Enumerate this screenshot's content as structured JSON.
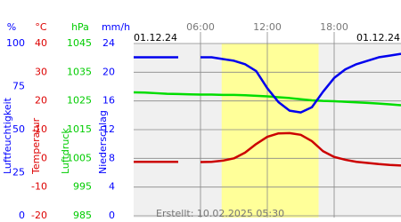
{
  "chart_data": {
    "type": "line",
    "left_date": "01.12.24",
    "right_date": "01.12.24",
    "footer": "Erstellt: 10.02.2025 05:30",
    "xlim": [
      0,
      24
    ],
    "xticks": [
      {
        "value": 6,
        "label": "06:00"
      },
      {
        "value": 12,
        "label": "12:00"
      },
      {
        "value": 18,
        "label": "18:00"
      }
    ],
    "daylight": [
      7.9,
      16.6
    ],
    "grid": true,
    "axes": [
      {
        "unit": "%",
        "label": "Luftfeuchtigkeit",
        "color": "#0000ff",
        "lim": [
          0,
          100
        ],
        "ticks": [
          0,
          25,
          50,
          75,
          100
        ]
      },
      {
        "unit": "°C",
        "label": "Temperatur",
        "color": "#dd0000",
        "lim": [
          -20,
          40
        ],
        "ticks": [
          -20,
          -10,
          0,
          10,
          20,
          30,
          40
        ]
      },
      {
        "unit": "hPa",
        "label": "Luftdruck",
        "color": "#00cc00",
        "lim": [
          985,
          1045
        ],
        "ticks": [
          985,
          995,
          1005,
          1015,
          1025,
          1035,
          1045
        ]
      },
      {
        "unit": "mm/h",
        "label": "Niederschlag",
        "color": "#0000ff",
        "lim": [
          0,
          24
        ],
        "ticks": [
          0,
          4,
          8,
          12,
          16,
          20,
          24
        ]
      }
    ],
    "x": [
      0,
      1,
      2,
      3,
      4,
      5,
      6,
      7,
      8,
      9,
      10,
      11,
      12,
      13,
      14,
      15,
      16,
      17,
      18,
      19,
      20,
      21,
      22,
      23,
      24
    ],
    "series": [
      {
        "axis": 2,
        "color": "#00dd00",
        "values": [
          1028,
          1027.9,
          1027.7,
          1027.5,
          1027.4,
          1027.3,
          1027.2,
          1027.2,
          1027.1,
          1027.1,
          1027,
          1026.8,
          1026.6,
          1026.3,
          1026,
          1025.6,
          1025.2,
          1025,
          1024.9,
          1024.7,
          1024.5,
          1024.3,
          1024.1,
          1023.8,
          1023.5
        ]
      },
      {
        "axis": 0,
        "color": "#0000ee",
        "values": [
          92,
          92,
          92,
          92,
          92,
          null,
          92,
          92,
          91,
          90,
          88,
          84,
          74,
          66,
          61,
          60,
          63,
          72,
          80,
          85,
          88,
          90,
          92,
          93,
          94
        ]
      },
      {
        "axis": 1,
        "color": "#cc0000",
        "values": [
          -1.2,
          -1.2,
          -1.2,
          -1.2,
          -1.2,
          null,
          -1.3,
          -1.2,
          -0.8,
          0,
          2,
          5,
          7.5,
          8.7,
          8.8,
          8.2,
          6,
          2.5,
          0.5,
          -0.5,
          -1.2,
          -1.6,
          -2,
          -2.3,
          -2.5
        ]
      }
    ]
  }
}
